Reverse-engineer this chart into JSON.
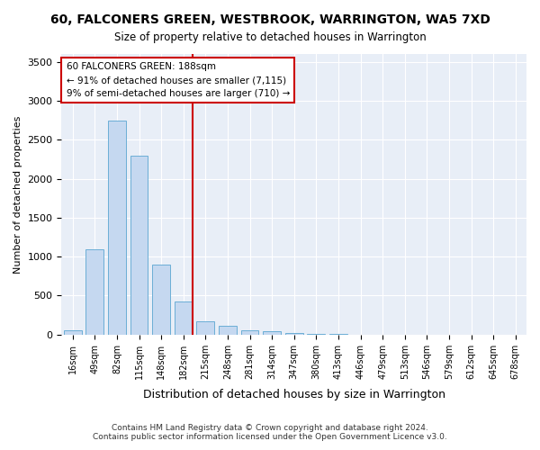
{
  "title": "60, FALCONERS GREEN, WESTBROOK, WARRINGTON, WA5 7XD",
  "subtitle": "Size of property relative to detached houses in Warrington",
  "xlabel": "Distribution of detached houses by size in Warrington",
  "ylabel": "Number of detached properties",
  "bin_labels": [
    "16sqm",
    "49sqm",
    "82sqm",
    "115sqm",
    "148sqm",
    "182sqm",
    "215sqm",
    "248sqm",
    "281sqm",
    "314sqm",
    "347sqm",
    "380sqm",
    "413sqm",
    "446sqm",
    "479sqm",
    "513sqm",
    "546sqm",
    "579sqm",
    "612sqm",
    "645sqm",
    "678sqm"
  ],
  "bar_values": [
    50,
    1100,
    2750,
    2300,
    900,
    420,
    170,
    110,
    55,
    40,
    20,
    5,
    5,
    0,
    0,
    0,
    0,
    0,
    0,
    0,
    0
  ],
  "bar_color": "#c5d8f0",
  "bar_edge_color": "#6baed6",
  "property_label": "60 FALCONERS GREEN: 188sqm",
  "annotation_line1": "← 91% of detached houses are smaller (7,115)",
  "annotation_line2": "9% of semi-detached houses are larger (710) →",
  "vline_color": "#cc0000",
  "annotation_box_edge_color": "#cc0000",
  "vline_x": 5.4,
  "ylim": [
    0,
    3600
  ],
  "yticks": [
    0,
    500,
    1000,
    1500,
    2000,
    2500,
    3000,
    3500
  ],
  "footer_line1": "Contains HM Land Registry data © Crown copyright and database right 2024.",
  "footer_line2": "Contains public sector information licensed under the Open Government Licence v3.0.",
  "plot_bg_color": "#e8eef7"
}
